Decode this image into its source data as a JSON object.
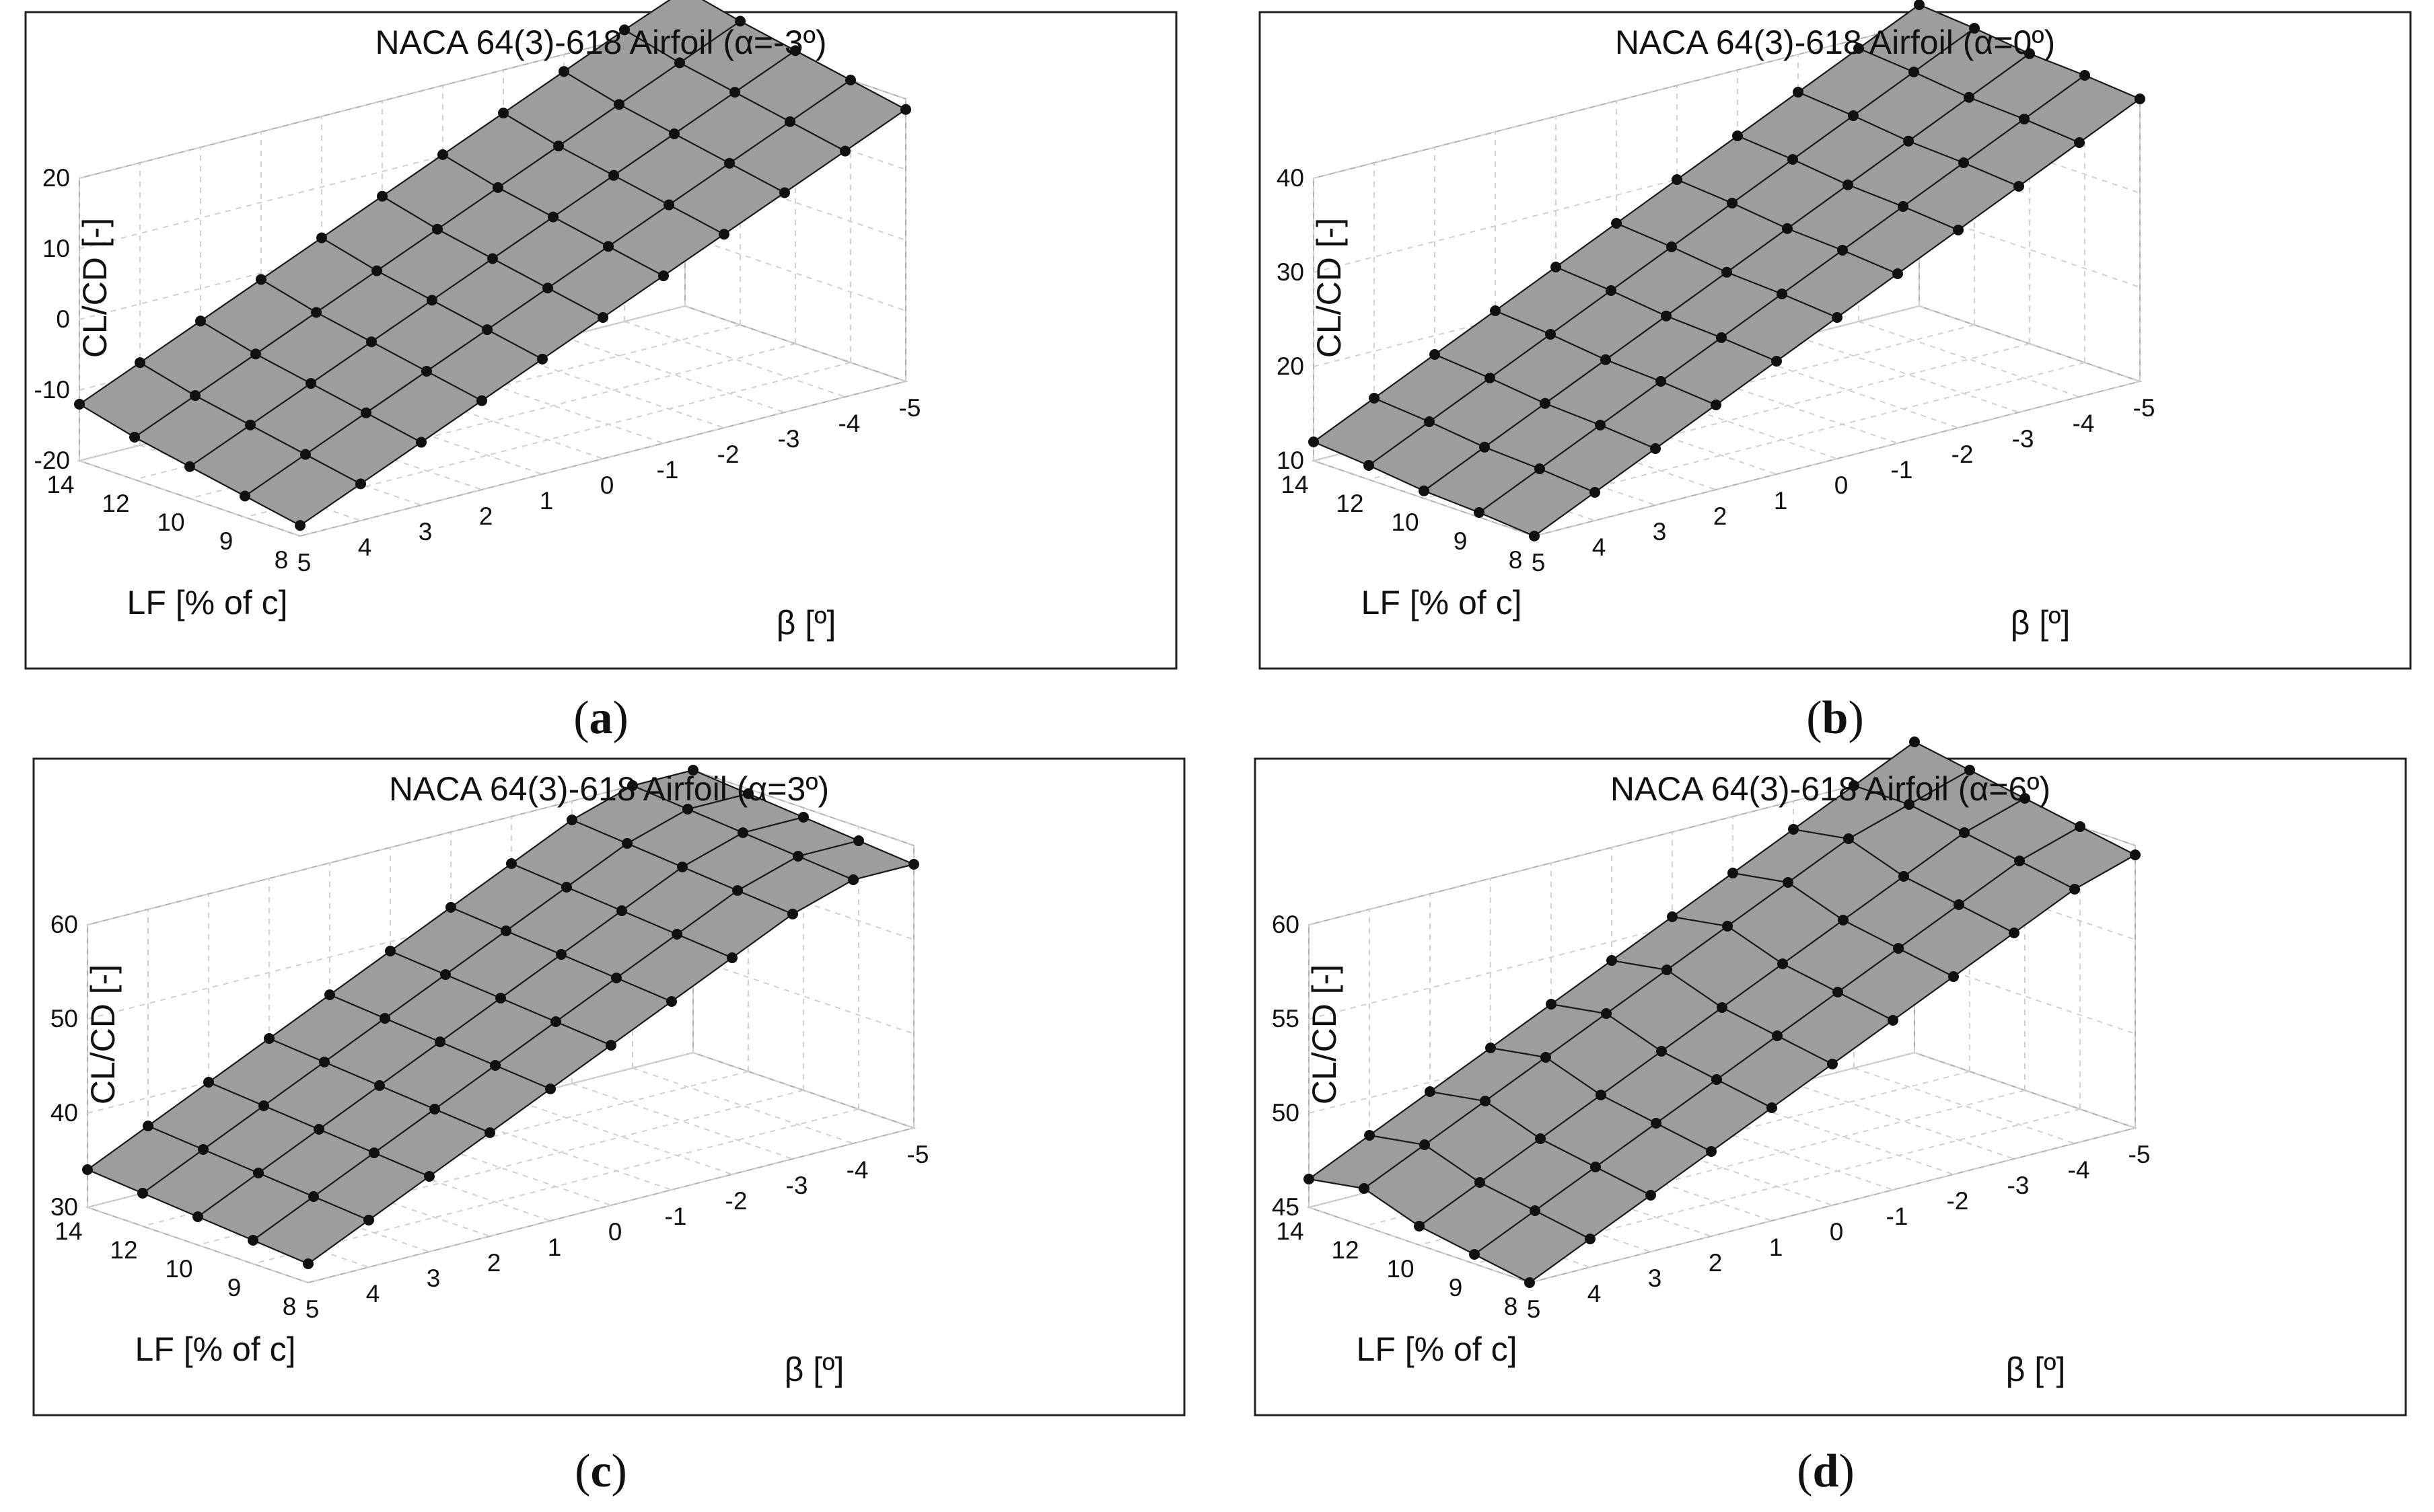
{
  "chart_data": [
    {
      "type": "surface3d",
      "caption": "a",
      "title": "NACA 64(3)-618 Airfoil (α=-3º)",
      "zlabel": "CL/CD [-]",
      "xlabel": "LF [% of c]",
      "ylabel": "β [º]",
      "x_lf": [
        14,
        12,
        10,
        9,
        8
      ],
      "y_beta": [
        5,
        4,
        3,
        2,
        1,
        0,
        -1,
        -2,
        -3,
        -4,
        -5
      ],
      "zlim": [
        -20,
        20
      ],
      "zticks": [
        -20,
        -10,
        0,
        10,
        20
      ],
      "x_ticks": [
        "14",
        "12",
        "10",
        "9",
        "8"
      ],
      "y_ticks": [
        "5",
        "4",
        "3",
        "2",
        "1",
        "0",
        "-1",
        "-2",
        "-3",
        "-4",
        "-5"
      ],
      "z_ticks": [
        "-20",
        "-10",
        "0",
        "10",
        "20"
      ],
      "values": [
        [
          -12,
          -8.3,
          -4.6,
          -0.9,
          2.8,
          6.5,
          10.2,
          13.9,
          17.6,
          21.3,
          25
        ],
        [
          -14,
          -10.3,
          -6.6,
          -2.9,
          0.8,
          4.5,
          8.2,
          11.9,
          15.6,
          19.3,
          23
        ],
        [
          -15.5,
          -11.8,
          -8.1,
          -4.4,
          -0.7,
          3,
          6.7,
          10.4,
          14.1,
          17.8,
          21.5
        ],
        [
          -17,
          -13.3,
          -9.6,
          -5.9,
          -2.2,
          1.5,
          5.2,
          8.9,
          12.6,
          16.3,
          20
        ],
        [
          -18.5,
          -14.8,
          -11.1,
          -7.4,
          -3.7,
          0,
          3.7,
          7.4,
          11.1,
          14.8,
          18.5
        ]
      ]
    },
    {
      "type": "surface3d",
      "caption": "b",
      "title": "NACA 64(3)-618 Airfoil (α=0º)",
      "zlabel": "CL/CD [-]",
      "xlabel": "LF [% of c]",
      "ylabel": "β [º]",
      "x_lf": [
        14,
        12,
        10,
        9,
        8
      ],
      "y_beta": [
        5,
        4,
        3,
        2,
        1,
        0,
        -1,
        -2,
        -3,
        -4,
        -5
      ],
      "zlim": [
        10,
        40
      ],
      "zticks": [
        10,
        20,
        30,
        40
      ],
      "x_ticks": [
        "14",
        "12",
        "10",
        "9",
        "8"
      ],
      "y_ticks": [
        "5",
        "4",
        "3",
        "2",
        "1",
        "0",
        "-1",
        "-2",
        "-3",
        "-4",
        "-5"
      ],
      "z_ticks": [
        "10",
        "20",
        "30",
        "40"
      ],
      "values": [
        [
          12,
          15,
          18,
          21,
          24,
          27,
          30,
          33,
          36,
          39,
          42
        ],
        [
          11.5,
          14.5,
          17.5,
          20.5,
          23.5,
          26.5,
          29.5,
          32.5,
          35.5,
          38.5,
          41.5
        ],
        [
          10.8,
          13.8,
          16.8,
          19.8,
          22.8,
          25.8,
          28.8,
          31.8,
          34.8,
          37.8,
          40.8
        ],
        [
          10.5,
          13.5,
          16.5,
          19.5,
          22.5,
          25.5,
          28.5,
          31.5,
          34.5,
          37.5,
          40.5
        ],
        [
          10,
          13,
          16,
          19,
          22,
          25,
          28,
          31,
          34,
          37,
          40
        ]
      ]
    },
    {
      "type": "surface3d",
      "caption": "c",
      "title": "NACA 64(3)-618 Airfoil (α=3º)",
      "zlabel": "CL/CD [-]",
      "xlabel": "LF [% of c]",
      "ylabel": "β [º]",
      "x_lf": [
        14,
        12,
        10,
        9,
        8
      ],
      "y_beta": [
        5,
        4,
        3,
        2,
        1,
        0,
        -1,
        -2,
        -3,
        -4,
        -5
      ],
      "zlim": [
        30,
        60
      ],
      "zticks": [
        30,
        40,
        50,
        60
      ],
      "x_ticks": [
        "14",
        "12",
        "10",
        "9",
        "8"
      ],
      "y_ticks": [
        "5",
        "4",
        "3",
        "2",
        "1",
        "0",
        "-1",
        "-2",
        "-3",
        "-4",
        "-5"
      ],
      "z_ticks": [
        "30",
        "40",
        "50",
        "60"
      ],
      "values": [
        [
          34,
          37,
          40,
          43,
          46,
          49,
          52,
          55,
          58,
          60,
          60
        ],
        [
          33.5,
          36.5,
          39.5,
          42.5,
          45.5,
          48.5,
          51.5,
          54.5,
          57.5,
          59.5,
          59.5
        ],
        [
          33,
          36,
          39,
          42,
          45,
          48,
          51,
          54,
          57,
          59,
          59
        ],
        [
          32.5,
          35.5,
          38.5,
          41.5,
          44.5,
          47.5,
          50.5,
          53.5,
          56.5,
          58.5,
          58.5
        ],
        [
          32,
          35,
          38,
          41,
          44,
          47,
          50,
          53,
          56,
          58,
          58
        ]
      ]
    },
    {
      "type": "surface3d",
      "caption": "d",
      "title": "NACA 64(3)-618 Airfoil (α=6º)",
      "zlabel": "CL/CD [-]",
      "xlabel": "LF [% of c]",
      "ylabel": "β [º]",
      "x_lf": [
        14,
        12,
        10,
        9,
        8
      ],
      "y_beta": [
        5,
        4,
        3,
        2,
        1,
        0,
        -1,
        -2,
        -3,
        -4,
        -5
      ],
      "zlim": [
        45,
        60
      ],
      "zticks": [
        45,
        50,
        55,
        60
      ],
      "x_ticks": [
        "14",
        "12",
        "10",
        "9",
        "8"
      ],
      "y_ticks": [
        "5",
        "4",
        "3",
        "2",
        "1",
        "0",
        "-1",
        "-2",
        "-3",
        "-4",
        "-5"
      ],
      "z_ticks": [
        "45",
        "50",
        "55",
        "60"
      ],
      "values": [
        [
          46.5,
          48,
          49.5,
          51,
          52.5,
          54,
          55.5,
          57,
          58.5,
          60,
          61.5
        ],
        [
          47,
          48.5,
          50,
          51.5,
          53,
          54.5,
          56,
          57.5,
          59,
          60,
          61
        ],
        [
          46,
          47.5,
          49,
          50.5,
          52,
          53.5,
          55,
          56.5,
          58,
          59.5,
          60.5
        ],
        [
          45.5,
          47,
          48.5,
          50,
          51.5,
          53,
          54.5,
          56,
          57.5,
          59,
          60
        ],
        [
          45,
          46.5,
          48,
          49.5,
          51,
          52.5,
          54,
          55.5,
          57,
          58.5,
          59.5
        ]
      ]
    }
  ]
}
